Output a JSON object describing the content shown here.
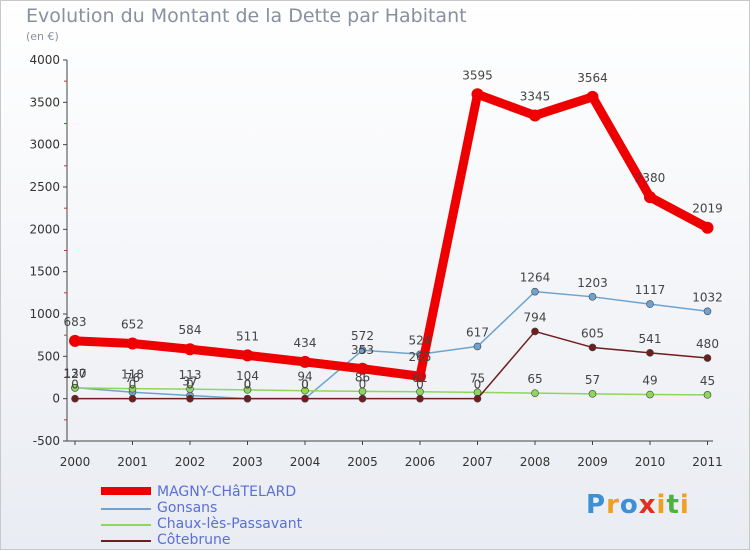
{
  "chart_data": {
    "type": "line",
    "title": "Evolution du Montant de la Dette par Habitant",
    "subtitle": "(en €)",
    "categories": [
      "2000",
      "2001",
      "2002",
      "2003",
      "2004",
      "2005",
      "2006",
      "2007",
      "2008",
      "2009",
      "2010",
      "2011"
    ],
    "y_ticks": [
      "-500",
      "0",
      "500",
      "1000",
      "1500",
      "2000",
      "2500",
      "3000",
      "3500",
      "4000"
    ],
    "ylim": [
      -500,
      4000
    ],
    "series": [
      {
        "name": "Gonsans",
        "color": "#6ea3cf",
        "values": [
          130,
          76,
          37,
          0,
          0,
          572,
          524,
          617,
          1264,
          1203,
          1117,
          1032
        ],
        "labels": [
          "130",
          "76",
          "37",
          "0",
          "0",
          "572",
          "524",
          "617",
          "1264",
          "1203",
          "1117",
          "1032"
        ]
      },
      {
        "name": "Chaux-lès-Passavant",
        "color": "#8fd65a",
        "values": [
          127,
          118,
          113,
          104,
          94,
          86,
          81,
          75,
          65,
          57,
          49,
          45
        ],
        "labels": [
          "127",
          "118",
          "113",
          "104",
          "94",
          "86",
          "81",
          "75",
          "65",
          "57",
          "49",
          "45"
        ]
      },
      {
        "name": "Côtebrune",
        "color": "#6e1e1e",
        "values": [
          0,
          0,
          0,
          0,
          0,
          0,
          0,
          0,
          794,
          605,
          541,
          480
        ],
        "labels": [
          "0",
          "0",
          "0",
          "0",
          "0",
          "0",
          "0",
          "0",
          "794",
          "605",
          "541",
          "480"
        ]
      },
      {
        "name": "MAGNY-CHâTELARD",
        "color": "#ee0000",
        "values": [
          683,
          652,
          584,
          511,
          434,
          353,
          265,
          3595,
          3345,
          3564,
          2380,
          2019
        ],
        "labels": [
          "683",
          "652",
          "584",
          "511",
          "434",
          "353",
          "265",
          "3595",
          "3345",
          "3564",
          "2380",
          "2019"
        ]
      }
    ],
    "legend": [
      {
        "name": "MAGNY-CHâTELARD",
        "color": "#ee0000"
      },
      {
        "name": "Gonsans",
        "color": "#6ea3cf"
      },
      {
        "name": "Chaux-lès-Passavant",
        "color": "#8fd65a"
      },
      {
        "name": "Côtebrune",
        "color": "#6e1e1e"
      }
    ]
  },
  "brand": {
    "letters": [
      "P",
      "r",
      "o",
      "x",
      "i",
      "t",
      "i"
    ]
  }
}
